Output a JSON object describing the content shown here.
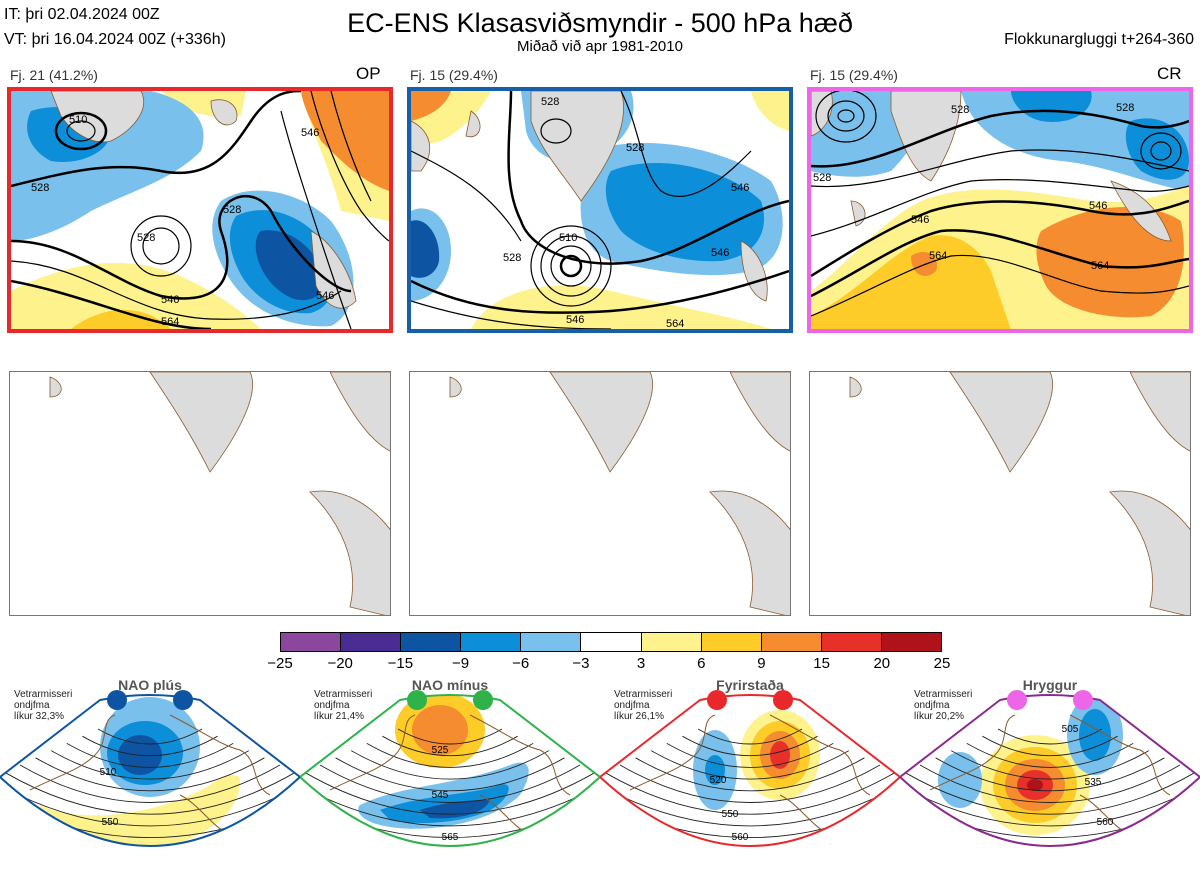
{
  "header": {
    "it_line": "IT: þri 02.04.2024 00Z",
    "vt_line": "VT: þri 16.04.2024 00Z  (+336h)",
    "title": "EC-ENS Klasasviðsmyndir - 500 hPa hæð",
    "subtitle": "Miðað við apr 1981-2010",
    "window": "Flokkunargluggi t+264-360"
  },
  "clusters": [
    {
      "label": "Fj. 21 (41.2%)",
      "tag": "OP",
      "border": "#e8282b",
      "contours": [
        "510",
        "528",
        "528",
        "528",
        "546",
        "546",
        "546",
        "564"
      ]
    },
    {
      "label": "Fj. 15 (29.4%)",
      "tag": "",
      "border": "#1560a8",
      "contours": [
        "528",
        "528",
        "528",
        "510",
        "546",
        "546",
        "546",
        "564"
      ]
    },
    {
      "label": "Fj. 15 (29.4%)",
      "tag": "CR",
      "border": "#ee66e8",
      "contours": [
        "528",
        "528",
        "528",
        "546",
        "546",
        "564",
        "564"
      ]
    }
  ],
  "colors": {
    "land": "#dcdcdc",
    "coast": "#8b5a2b",
    "neg": [
      "#8b469e",
      "#4a2d92",
      "#0d55a3",
      "#0c8ed8",
      "#79c1ec"
    ],
    "pos": [
      "#fdf28c",
      "#fdcc28",
      "#f58c30",
      "#e8302b",
      "#b0121a"
    ]
  },
  "chart_data": {
    "type": "heatmap",
    "title": "EC-ENS Klasasviðsmyndir - 500 hPa hæð",
    "colorbar": {
      "ticks": [
        "−25",
        "−20",
        "−15",
        "−9",
        "−6",
        "−3",
        "3",
        "6",
        "9",
        "15",
        "20",
        "25"
      ],
      "colors": [
        "#8b469e",
        "#4a2d92",
        "#0d55a3",
        "#0c8ed8",
        "#4fb3ea",
        "#a9d9f4",
        "#ffffff",
        "#fdf28c",
        "#fdcc28",
        "#f58c30",
        "#e8302b",
        "#b0121a"
      ]
    },
    "regimes": [
      {
        "name": "NAO plús",
        "dot": "#0d55a3",
        "frame": "#0d55a3",
        "note": [
          "Vetrarmisseri",
          "ondjfma",
          "líkur 32,3%"
        ],
        "contours": [
          "510",
          "550"
        ]
      },
      {
        "name": "NAO mínus",
        "dot": "#2fb24a",
        "frame": "#2fb24a",
        "note": [
          "Vetrarmisseri",
          "ondjfma",
          "líkur 21,4%"
        ],
        "contours": [
          "525",
          "545",
          "565"
        ]
      },
      {
        "name": "Fyrirstaða",
        "dot": "#e8282b",
        "frame": "#e8282b",
        "note": [
          "Vetrarmisseri",
          "ondjfma",
          "líkur 26,1%"
        ],
        "contours": [
          "520",
          "550",
          "560"
        ]
      },
      {
        "name": "Hryggur",
        "dot": "#ee66e8",
        "frame": "#8a2a8e",
        "note": [
          "Vetrarmisseri",
          "ondjfma",
          "líkur 20,2%"
        ],
        "contours": [
          "505",
          "535",
          "560"
        ]
      }
    ]
  }
}
